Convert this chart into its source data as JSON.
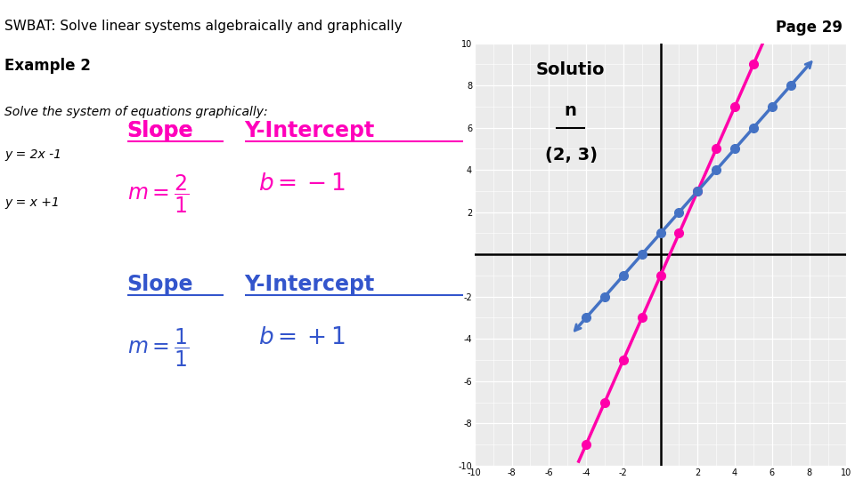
{
  "title": "SWBAT: Solve linear systems algebraically and graphically",
  "page": "Page 29",
  "example": "Example 2",
  "problem_text": "Solve the system of equations graphically:",
  "eq1": "y = 2x -1",
  "eq2": "y = x +1",
  "slope1_label": "Slope",
  "yint1_label": "Y-Intercept",
  "slope2_label": "Slope",
  "yint2_label": "Y-Intercept",
  "solution_val": "(2, 3)",
  "solution_box_color": "#E87722",
  "line1_color": "#FF00AA",
  "line2_color": "#4472C4",
  "line1_slope": 2,
  "line1_intercept": -1,
  "line2_slope": 1,
  "line2_intercept": 1,
  "intersection": [
    2,
    3
  ],
  "magenta_color": "#FF00BB",
  "blue_color": "#3355CC",
  "title_color": "#000000",
  "bg_color": "#FFFFFF"
}
